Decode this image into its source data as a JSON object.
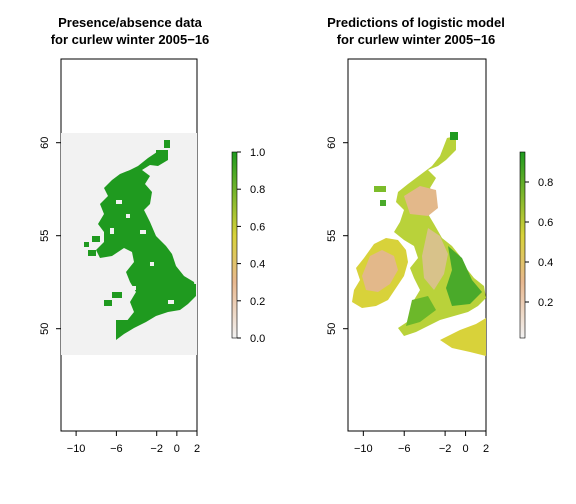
{
  "chart_data": [
    {
      "type": "heatmap",
      "title": "Presence/absence data\nfor curlew winter 2005−16",
      "x_ticks": [
        "−10",
        "−6",
        "−2",
        "0",
        "2"
      ],
      "y_ticks": [
        "50",
        "55",
        "60"
      ],
      "xlim": [
        -11.5,
        2
      ],
      "ylim": [
        44.5,
        64.5
      ],
      "data_extent": {
        "lon": [
          -11,
          2
        ],
        "lat": [
          49,
          61
        ]
      },
      "value_range": [
        0,
        1
      ],
      "colorbar_ticks": [
        "0.0",
        "0.2",
        "0.4",
        "0.6",
        "0.8",
        "1.0"
      ],
      "colorbar_values": [
        0,
        0.2,
        0.4,
        0.6,
        0.8,
        1.0
      ],
      "colors": {
        "absent_background": "#f2f2f2",
        "present": "#1f9a1f"
      }
    },
    {
      "type": "heatmap",
      "title": "Predictions of logistic model\nfor curlew winter 2005−16",
      "x_ticks": [
        "−10",
        "−6",
        "−2",
        "0",
        "2"
      ],
      "y_ticks": [
        "50",
        "55",
        "60"
      ],
      "xlim": [
        -11.5,
        2
      ],
      "ylim": [
        44.5,
        64.5
      ],
      "value_range": [
        0.02,
        0.95
      ],
      "colorbar_ticks": [
        "0.2",
        "0.4",
        "0.6",
        "0.8"
      ],
      "colorbar_values": [
        0.2,
        0.4,
        0.6,
        0.8
      ],
      "colors": {
        "low": "#f2f2f2",
        "mid_low": "#e8b890",
        "mid": "#d8d23a",
        "high": "#1f9a1f"
      }
    }
  ]
}
